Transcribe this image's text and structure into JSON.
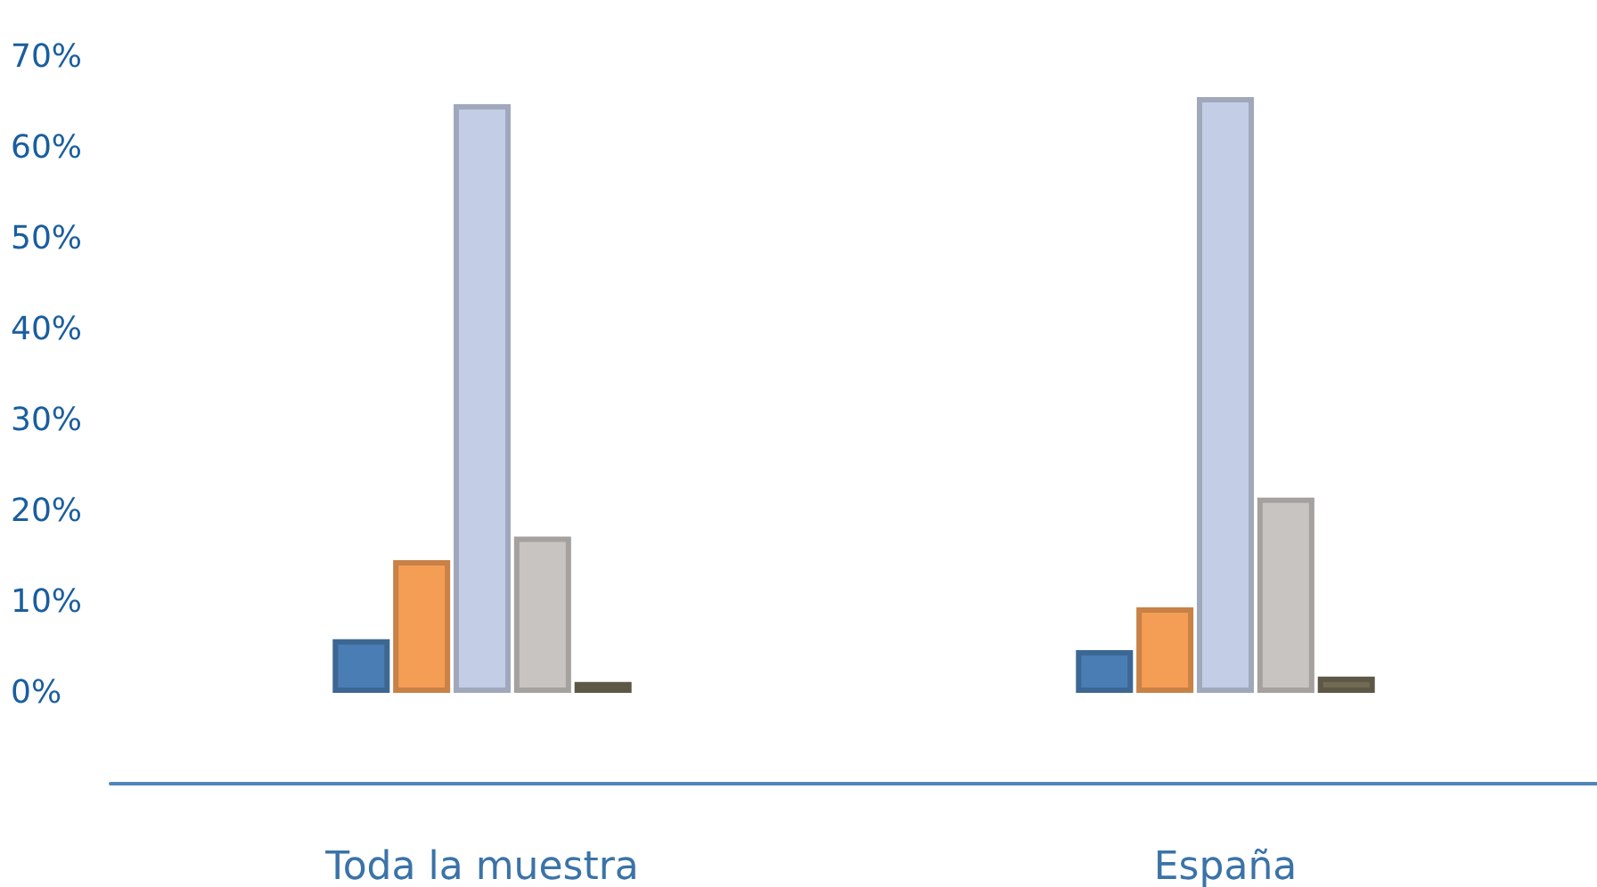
{
  "chart_data": {
    "type": "bar",
    "categories": [
      "Toda la muestra",
      "España"
    ],
    "series": [
      {
        "color": "#4a7db3",
        "values": [
          5.9,
          4.7
        ]
      },
      {
        "color": "#f49d55",
        "values": [
          14.6,
          9.4
        ]
      },
      {
        "color": "#c3cde5",
        "values": [
          64.8,
          65.6
        ]
      },
      {
        "color": "#c8c4c2",
        "values": [
          17.2,
          21.5
        ]
      },
      {
        "color": "#716a55",
        "values": [
          1.2,
          1.8
        ]
      }
    ],
    "ylim": [
      -10,
      70
    ],
    "yticks": [
      {
        "value": -10,
        "label": null
      },
      {
        "value": 0,
        "label": "0%"
      },
      {
        "value": 10,
        "label": "10%"
      },
      {
        "value": 20,
        "label": "20%"
      },
      {
        "value": 30,
        "label": "30%"
      },
      {
        "value": 40,
        "label": "40%"
      },
      {
        "value": 50,
        "label": "50%"
      },
      {
        "value": 60,
        "label": "60%"
      },
      {
        "value": 70,
        "label": "70%"
      }
    ],
    "grid": false
  }
}
